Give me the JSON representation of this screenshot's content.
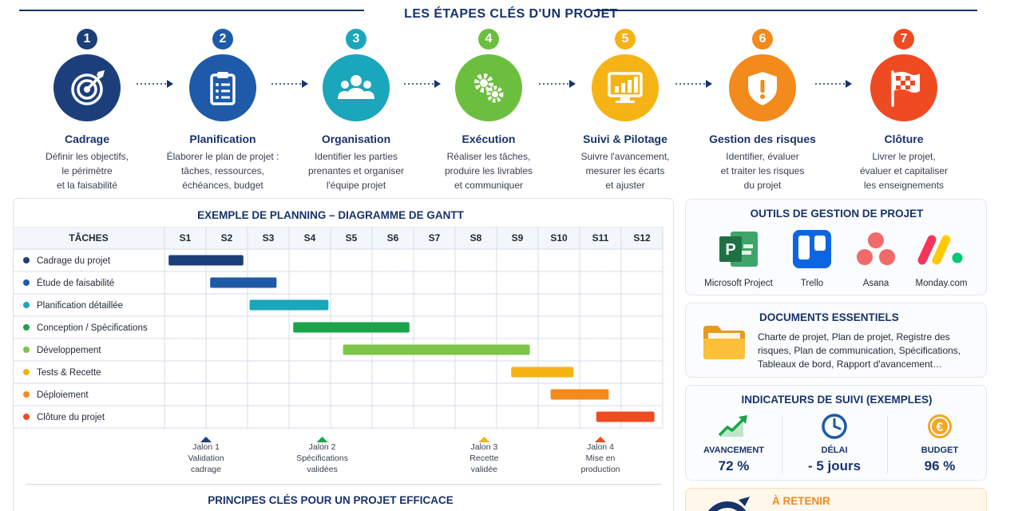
{
  "header": {
    "title": "LES ÉTAPES CLÉS D'UN PROJET"
  },
  "steps": [
    {
      "num": "1",
      "title": "Cadrage",
      "desc": "Définir les objectifs,\nle périmètre\net la faisabilité",
      "color": "#1c3f7c",
      "icon": "target-icon"
    },
    {
      "num": "2",
      "title": "Planification",
      "desc": "Élaborer le plan de projet :\ntâches, ressources,\néchéances, budget",
      "color": "#1e5aa8",
      "icon": "clipboard-icon"
    },
    {
      "num": "3",
      "title": "Organisation",
      "desc": "Identifier les parties\nprenantes et organiser\nl'équipe projet",
      "color": "#1aa6bb",
      "icon": "team-icon"
    },
    {
      "num": "4",
      "title": "Exécution",
      "desc": "Réaliser les tâches,\nproduire les livrables\net communiquer",
      "color": "#6cbf3e",
      "icon": "gears-icon"
    },
    {
      "num": "5",
      "title": "Suivi & Pilotage",
      "desc": "Suivre l'avancement,\nmesurer les écarts\net ajuster",
      "color": "#f5b316",
      "icon": "monitor-chart-icon"
    },
    {
      "num": "6",
      "title": "Gestion des risques",
      "desc": "Identifier, évaluer\net traiter les risques\ndu projet",
      "color": "#f28a1c",
      "icon": "shield-warning-icon"
    },
    {
      "num": "7",
      "title": "Clôture",
      "desc": "Livrer le projet,\névaluer et capitaliser\nles enseignements",
      "color": "#ef4b23",
      "icon": "finish-flag-icon"
    }
  ],
  "gantt": {
    "title": "EXEMPLE DE PLANNING – DIAGRAMME DE GANTT",
    "tasks_header": "TÂCHES",
    "weeks": [
      "S1",
      "S2",
      "S3",
      "S4",
      "S5",
      "S6",
      "S7",
      "S8",
      "S9",
      "S10",
      "S11",
      "S12"
    ],
    "tasks": [
      {
        "name": "Cadrage du projet",
        "start": 0.1,
        "end": 1.9,
        "color": "#1c3f7c"
      },
      {
        "name": "Étude de faisabilité",
        "start": 1.1,
        "end": 2.7,
        "color": "#1e5aa8"
      },
      {
        "name": "Planification détaillée",
        "start": 2.05,
        "end": 3.95,
        "color": "#1aa6bb"
      },
      {
        "name": "Conception / Spécifications",
        "start": 3.1,
        "end": 5.9,
        "color": "#1ba34a"
      },
      {
        "name": "Développement",
        "start": 4.3,
        "end": 8.8,
        "color": "#7cc44a"
      },
      {
        "name": "Tests & Recette",
        "start": 8.35,
        "end": 9.85,
        "color": "#f5b316"
      },
      {
        "name": "Déploiement",
        "start": 9.3,
        "end": 10.7,
        "color": "#f28a1c"
      },
      {
        "name": "Clôture du projet",
        "start": 10.4,
        "end": 11.8,
        "color": "#ef4b23"
      }
    ],
    "milestones": [
      {
        "label": "Jalon 1\nValidation\ncadrage",
        "pos": 1.0,
        "color": "#1c3f7c"
      },
      {
        "label": "Jalon 2\nSpécifications\nvalidées",
        "pos": 3.8,
        "color": "#1ba34a"
      },
      {
        "label": "Jalon 3\nRecette\nvalidée",
        "pos": 7.7,
        "color": "#f5b316"
      },
      {
        "label": "Jalon 4\nMise en\nproduction",
        "pos": 10.5,
        "color": "#ef4b23"
      }
    ],
    "principles_title": "PRINCIPES CLÉS POUR UN PROJET EFFICACE"
  },
  "tools": {
    "title": "OUTILS DE GESTION DE PROJET",
    "items": [
      {
        "name": "Microsoft Project",
        "icon": "ms-project-icon"
      },
      {
        "name": "Trello",
        "icon": "trello-icon"
      },
      {
        "name": "Asana",
        "icon": "asana-icon"
      },
      {
        "name": "Monday.com",
        "icon": "monday-icon"
      }
    ]
  },
  "documents": {
    "title": "DOCUMENTS ESSENTIELS",
    "text": "Charte de projet, Plan de projet, Registre des risques, Plan de communication, Spécifications, Tableaux de bord, Rapport d'avancement…",
    "icon": "folder-icon"
  },
  "indicators": {
    "title": "INDICATEURS DE SUIVI (EXEMPLES)",
    "items": [
      {
        "label": "AVANCEMENT",
        "value": "72 %",
        "icon": "trend-up-icon"
      },
      {
        "label": "DÉLAI",
        "value": "- 5 jours",
        "icon": "clock-icon"
      },
      {
        "label": "BUDGET",
        "value": "96 %",
        "icon": "euro-coin-icon"
      }
    ]
  },
  "retenir": {
    "title": "À RETENIR"
  }
}
